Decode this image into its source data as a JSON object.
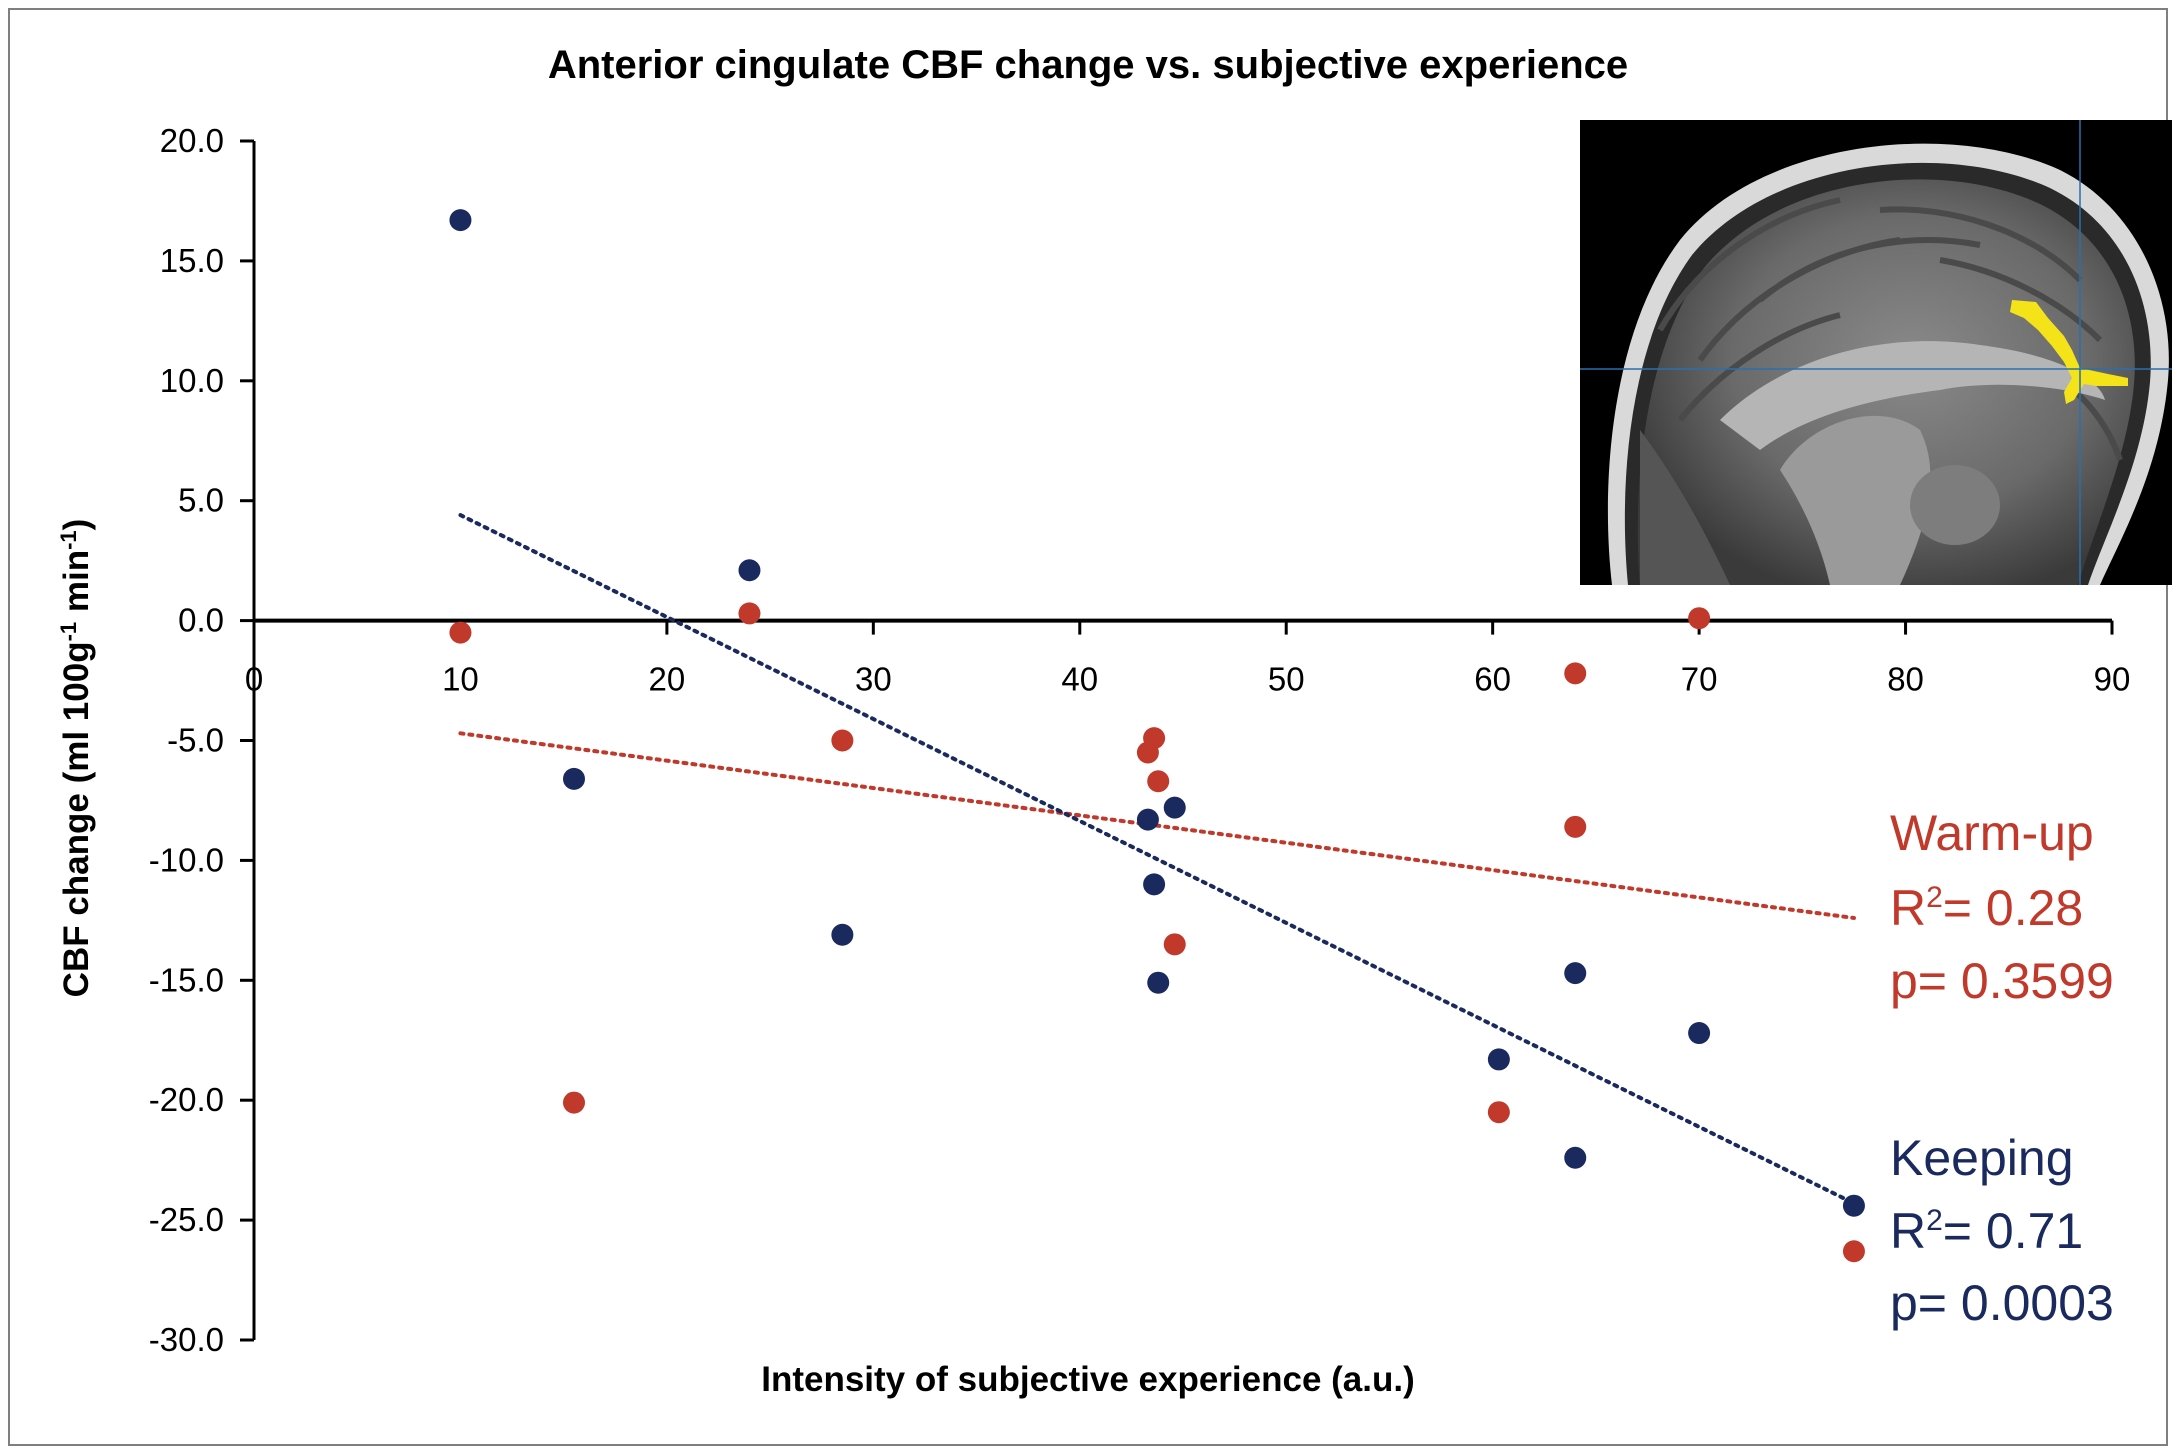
{
  "chart_data": {
    "type": "scatter",
    "title": "Anterior cingulate CBF change vs. subjective experience",
    "xlabel": "Intensity of subjective experience (a.u.)",
    "ylabel_parts": [
      "CBF change (ml 100g",
      "-1",
      " min",
      "-1",
      ")"
    ],
    "xlim": [
      0,
      90
    ],
    "ylim": [
      -30,
      20
    ],
    "xticks": [
      0,
      10,
      20,
      30,
      40,
      50,
      60,
      70,
      80,
      90
    ],
    "yticks": [
      "20.0",
      "15.0",
      "10.0",
      "5.0",
      "0.0",
      "-5.0",
      "-10.0",
      "-15.0",
      "-20.0",
      "-25.0",
      "-30.0"
    ],
    "series": [
      {
        "name": "Warm-up",
        "color": "#c0392b",
        "x": [
          10,
          15.5,
          24,
          28.5,
          43.3,
          43.6,
          43.8,
          44.6,
          60.3,
          64,
          64,
          70,
          77.5
        ],
        "y": [
          -0.5,
          -20.1,
          0.3,
          -5.0,
          -5.5,
          -4.9,
          -6.7,
          -13.5,
          -20.5,
          -2.2,
          -8.6,
          0.1,
          -26.3
        ],
        "trendline": {
          "x": [
            10,
            77.5
          ],
          "y": [
            -4.7,
            -12.4
          ]
        },
        "label": "Warm-up",
        "r2_prefix": "R",
        "r2_sup": "2",
        "r2_value": "= 0.28",
        "p_text": "p= 0.3599"
      },
      {
        "name": "Keeping",
        "color": "#1a2a5e",
        "x": [
          10,
          15.5,
          24,
          28.5,
          43.3,
          43.6,
          43.8,
          44.6,
          60.3,
          64,
          64,
          70,
          77.5
        ],
        "y": [
          16.7,
          -6.6,
          2.1,
          -13.1,
          -8.3,
          -11.0,
          -15.1,
          -7.8,
          -18.3,
          -14.7,
          -22.4,
          -17.2,
          -24.4
        ],
        "trendline": {
          "x": [
            10,
            77.5
          ],
          "y": [
            4.4,
            -24.3
          ]
        },
        "label": "Keeping",
        "r2_prefix": "R",
        "r2_sup": "2",
        "r2_value": "= 0.71",
        "p_text": "p= 0.0003"
      }
    ],
    "inset": "brain-mri-sagittal-image",
    "colors": {
      "highlight": "#f5e31a",
      "crosshair": "#2a6fb0"
    }
  }
}
